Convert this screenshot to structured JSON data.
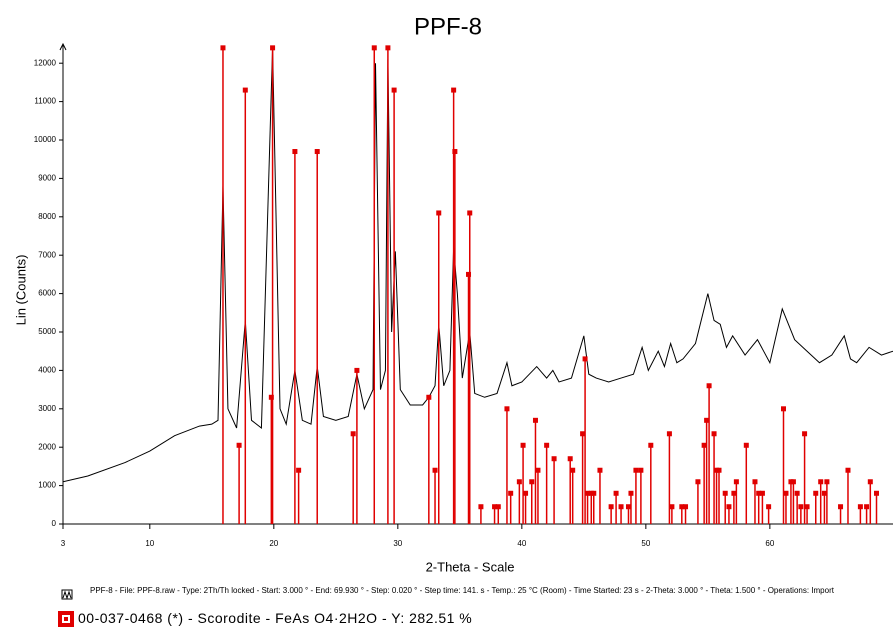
{
  "chart_data": {
    "type": "xrd",
    "title": "PPF-8",
    "ylabel": "Lin (Counts)",
    "xlabel": "2-Theta - Scale",
    "xlim": [
      3,
      69.93
    ],
    "xticks": [
      3,
      10,
      20,
      30,
      40,
      50,
      60
    ],
    "ylim": [
      0,
      12500
    ],
    "yticks": [
      0,
      1000,
      2000,
      3000,
      4000,
      5000,
      6000,
      7000,
      8000,
      9000,
      10000,
      11000,
      12000
    ],
    "series": [
      {
        "name": "PPF-8 - File: PPF-8.raw - Type: 2Th/Th locked - Start: 3.000 ° - End: 69.930 ° - Step: 0.020 ° - Step time: 141. s - Temp.: 25 °C (Room) - Time Started: 23 s - 2-Theta: 3.000 ° - Theta: 1.500 ° - Operations: Import",
        "color": "#000000",
        "type": "line",
        "x": [
          3,
          5,
          8,
          10,
          12,
          14,
          15,
          15.5,
          15.9,
          16.3,
          17,
          17.7,
          18.2,
          19,
          19.9,
          20.5,
          21,
          21.7,
          22.3,
          23,
          23.5,
          24,
          25,
          26,
          26.7,
          27.3,
          28,
          28.2,
          28.6,
          29,
          29.2,
          29.5,
          29.8,
          30.2,
          31,
          32,
          32.5,
          33,
          33.3,
          33.7,
          34.2,
          34.5,
          34.8,
          35.2,
          35.8,
          36.2,
          37,
          38,
          38.8,
          39.2,
          40,
          41.2,
          42,
          42.5,
          43,
          44,
          45,
          45.4,
          46,
          47,
          48,
          49,
          49.7,
          50.2,
          51,
          51.5,
          52,
          52.5,
          53,
          54,
          55,
          55.5,
          56,
          56.5,
          57,
          58,
          59,
          60,
          61,
          61.5,
          62,
          63,
          64,
          65,
          66,
          66.5,
          67,
          68,
          69,
          69.93
        ],
        "values": [
          1100,
          1250,
          1600,
          1900,
          2300,
          2550,
          2600,
          2700,
          8800,
          3000,
          2500,
          5300,
          2700,
          2500,
          12400,
          3000,
          2600,
          4000,
          2700,
          2600,
          4100,
          2800,
          2700,
          2800,
          3900,
          3000,
          3500,
          12000,
          3500,
          4000,
          12100,
          5000,
          7100,
          3500,
          3100,
          3100,
          3300,
          3600,
          5200,
          3600,
          4000,
          7200,
          6000,
          3800,
          5000,
          3400,
          3300,
          3400,
          4200,
          3600,
          3700,
          4100,
          3800,
          4000,
          3700,
          3800,
          4900,
          3900,
          3800,
          3700,
          3800,
          3900,
          4600,
          4000,
          4500,
          4100,
          4700,
          4200,
          4300,
          4700,
          6000,
          5300,
          5200,
          4600,
          4900,
          4400,
          4800,
          4200,
          5600,
          5200,
          4800,
          4500,
          4200,
          4400,
          4900,
          4300,
          4200,
          4600,
          4400,
          4500
        ]
      },
      {
        "name": "00-037-0468 (*) - Scorodite - FeAs O4·2H2O - Y: 282.51 %",
        "color": "#e00000",
        "type": "stick",
        "x": [
          15.9,
          17.2,
          17.7,
          19.8,
          19.9,
          21.7,
          22.0,
          23.5,
          26.4,
          26.7,
          28.1,
          29.2,
          29.7,
          32.5,
          33.0,
          33.3,
          34.5,
          34.6,
          35.7,
          35.8,
          36.7,
          37.8,
          38.1,
          38.8,
          39.1,
          39.8,
          40.1,
          40.3,
          40.8,
          41.1,
          41.3,
          42.0,
          42.6,
          43.9,
          44.1,
          44.9,
          45.1,
          45.3,
          45.6,
          45.8,
          46.3,
          47.2,
          47.6,
          48.0,
          48.6,
          48.8,
          49.2,
          49.6,
          50.4,
          51.9,
          52.1,
          52.9,
          53.2,
          54.2,
          54.7,
          54.9,
          55.1,
          55.5,
          55.7,
          55.9,
          56.4,
          56.7,
          57.1,
          57.3,
          58.1,
          58.8,
          59.1,
          59.4,
          59.9,
          61.1,
          61.3,
          61.7,
          61.9,
          62.2,
          62.5,
          62.8,
          63.0,
          63.7,
          64.1,
          64.4,
          64.6,
          65.7,
          66.3,
          67.3,
          67.8,
          68.1,
          68.6
        ],
        "values": [
          12400,
          2050,
          11300,
          3300,
          12400,
          9700,
          1400,
          9700,
          2350,
          4000,
          12400,
          12400,
          11300,
          3300,
          1400,
          8100,
          11300,
          9700,
          6500,
          8100,
          450,
          450,
          450,
          3000,
          800,
          1100,
          2050,
          800,
          1100,
          2700,
          1400,
          2050,
          1700,
          1700,
          1400,
          2350,
          4300,
          800,
          800,
          800,
          1400,
          450,
          800,
          450,
          450,
          800,
          1400,
          1400,
          2050,
          2350,
          450,
          450,
          450,
          1100,
          2050,
          2700,
          3600,
          2350,
          1400,
          1400,
          800,
          450,
          800,
          1100,
          2050,
          1100,
          800,
          800,
          450,
          3000,
          800,
          1100,
          1100,
          800,
          450,
          2350,
          450,
          800,
          1100,
          800,
          1100,
          450,
          1400,
          450,
          450,
          1100,
          800
        ]
      }
    ]
  }
}
